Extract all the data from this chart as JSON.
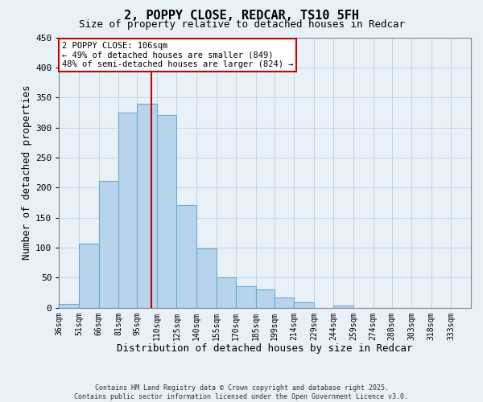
{
  "title": "2, POPPY CLOSE, REDCAR, TS10 5FH",
  "subtitle": "Size of property relative to detached houses in Redcar",
  "xlabel": "Distribution of detached houses by size in Redcar",
  "ylabel": "Number of detached properties",
  "bar_left_edges": [
    36,
    51,
    66,
    81,
    95,
    110,
    125,
    140,
    155,
    170,
    185,
    199,
    214,
    229,
    244,
    259,
    274,
    288,
    303,
    318
  ],
  "bar_widths": [
    15,
    15,
    15,
    14,
    15,
    15,
    15,
    15,
    15,
    15,
    14,
    15,
    15,
    15,
    15,
    15,
    14,
    15,
    15,
    15
  ],
  "bar_heights": [
    6,
    107,
    211,
    325,
    340,
    321,
    171,
    99,
    50,
    36,
    30,
    17,
    9,
    0,
    4,
    0,
    0,
    0,
    0,
    0
  ],
  "tick_labels": [
    "36sqm",
    "51sqm",
    "66sqm",
    "81sqm",
    "95sqm",
    "110sqm",
    "125sqm",
    "140sqm",
    "155sqm",
    "170sqm",
    "185sqm",
    "199sqm",
    "214sqm",
    "229sqm",
    "244sqm",
    "259sqm",
    "274sqm",
    "288sqm",
    "303sqm",
    "318sqm",
    "333sqm"
  ],
  "tick_positions": [
    36,
    51,
    66,
    81,
    95,
    110,
    125,
    140,
    155,
    170,
    185,
    199,
    214,
    229,
    244,
    259,
    274,
    288,
    303,
    318,
    333
  ],
  "bar_color": "#b8d4ec",
  "bar_edge_color": "#6aaad4",
  "ylim": [
    0,
    450
  ],
  "yticks": [
    0,
    50,
    100,
    150,
    200,
    250,
    300,
    350,
    400,
    450
  ],
  "grid_color": "#c0d0e0",
  "bg_color": "#e8f0f8",
  "vline_x": 106,
  "vline_color": "#cc0000",
  "annotation_title": "2 POPPY CLOSE: 106sqm",
  "annotation_line1": "← 49% of detached houses are smaller (849)",
  "annotation_line2": "48% of semi-detached houses are larger (824) →",
  "annotation_box_color": "#cc0000",
  "footer1": "Contains HM Land Registry data © Crown copyright and database right 2025.",
  "footer2": "Contains public sector information licensed under the Open Government Licence v3.0."
}
